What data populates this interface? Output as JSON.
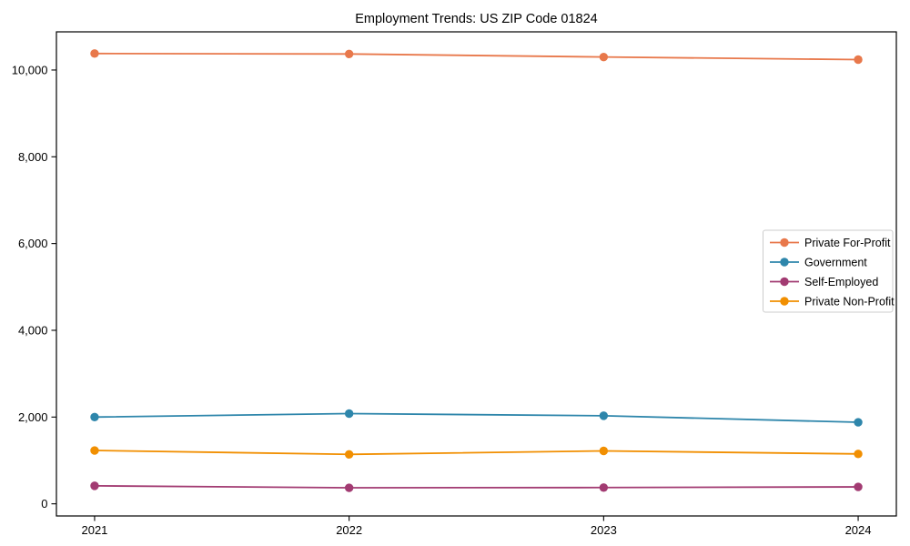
{
  "figure": {
    "background": "#ffffff",
    "axes_border_color": "#000000",
    "tick_color": "#000000",
    "legend_border_color": "#cccccc",
    "legend_background": "#ffffff"
  },
  "chart_data": {
    "type": "line",
    "title": "Employment Trends: US ZIP Code 01824",
    "xlabel": "",
    "ylabel": "",
    "x_values": [
      2021,
      2022,
      2023,
      2024
    ],
    "xtick_labels": [
      "2021",
      "2022",
      "2023",
      "2024"
    ],
    "yticks": [
      0,
      2000,
      4000,
      6000,
      8000,
      10000
    ],
    "ytick_labels": [
      "0",
      "2,000",
      "4,000",
      "6,000",
      "8,000",
      "10,000"
    ],
    "xlim": [
      2020.85,
      2024.15
    ],
    "ylim": [
      -280,
      10880
    ],
    "grid": false,
    "marker": "circle",
    "legend_position": "center right",
    "series": [
      {
        "name": "Private For-Profit",
        "color": "#E8784B",
        "values": [
          10380,
          10370,
          10300,
          10240
        ]
      },
      {
        "name": "Government",
        "color": "#2E86AB",
        "values": [
          2000,
          2080,
          2030,
          1880
        ]
      },
      {
        "name": "Self-Employed",
        "color": "#A23B72",
        "values": [
          415,
          370,
          375,
          390
        ]
      },
      {
        "name": "Private Non-Profit",
        "color": "#F18F01",
        "values": [
          1230,
          1140,
          1220,
          1150
        ]
      }
    ]
  }
}
